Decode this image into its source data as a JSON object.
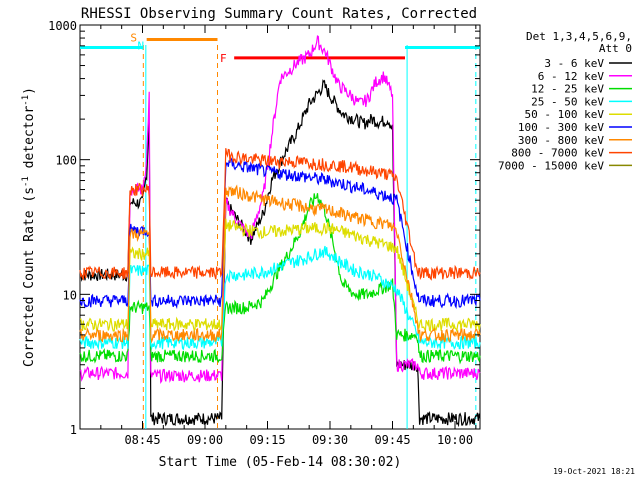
{
  "chart_data": {
    "type": "line",
    "title": "RHESSI Observing Summary Count Rates, Corrected",
    "xlabel": "Start Time (05-Feb-14 08:30:02)",
    "ylabel": "Corrected Count Rate (s",
    "ylabel_sup1": "-1",
    "ylabel_mid": " detector",
    "ylabel_sup2": "-1",
    "ylabel_end": ")",
    "yscale": "log",
    "ylim": [
      1,
      1000
    ],
    "xlim_minutes": [
      0,
      96
    ],
    "x_ticks": [
      {
        "label": "08:45",
        "min": 15
      },
      {
        "label": "09:00",
        "min": 30
      },
      {
        "label": "09:15",
        "min": 45
      },
      {
        "label": "09:30",
        "min": 60
      },
      {
        "label": "09:45",
        "min": 75
      },
      {
        "label": "10:00",
        "min": 90
      }
    ],
    "y_ticks": [
      {
        "label": "1",
        "value": 1
      },
      {
        "label": "10",
        "value": 10
      },
      {
        "label": "100",
        "value": 100
      },
      {
        "label": "1000",
        "value": 1000
      }
    ],
    "legend_header_1": "Det 1,3,4,5,6,9,",
    "legend_header_2": "Att 0",
    "legend_position": "right",
    "series": [
      {
        "name": "3 - 6 keV",
        "color": "#000000",
        "points": [
          [
            0,
            14
          ],
          [
            10,
            14
          ],
          [
            11.5,
            14
          ],
          [
            12,
            48
          ],
          [
            15,
            48
          ],
          [
            16,
            80
          ],
          [
            16.6,
            200
          ],
          [
            17,
            1.2
          ],
          [
            26,
            1.2
          ],
          [
            34,
            1.2
          ],
          [
            35,
            48
          ],
          [
            38,
            35
          ],
          [
            41,
            26
          ],
          [
            44,
            40
          ],
          [
            46,
            70
          ],
          [
            49,
            110
          ],
          [
            52,
            160
          ],
          [
            55,
            260
          ],
          [
            57,
            310
          ],
          [
            58.5,
            360
          ],
          [
            60,
            300
          ],
          [
            63,
            220
          ],
          [
            66,
            200
          ],
          [
            68,
            185
          ],
          [
            70,
            200
          ],
          [
            72,
            190
          ],
          [
            74,
            200
          ],
          [
            75,
            170
          ],
          [
            76,
            3
          ],
          [
            81,
            3
          ],
          [
            81.5,
            1.2
          ],
          [
            96,
            1.2
          ]
        ]
      },
      {
        "name": "6 - 12 keV",
        "color": "#ff00ff",
        "points": [
          [
            0,
            2.6
          ],
          [
            10,
            2.6
          ],
          [
            11.5,
            2.6
          ],
          [
            12,
            60
          ],
          [
            15,
            60
          ],
          [
            16,
            100
          ],
          [
            16.6,
            300
          ],
          [
            17,
            2.5
          ],
          [
            26,
            2.5
          ],
          [
            34,
            2.5
          ],
          [
            35,
            48
          ],
          [
            38,
            34
          ],
          [
            41,
            27
          ],
          [
            44,
            55
          ],
          [
            46,
            150
          ],
          [
            48,
            400
          ],
          [
            52,
            520
          ],
          [
            55,
            600
          ],
          [
            57,
            760
          ],
          [
            59,
            620
          ],
          [
            62,
            360
          ],
          [
            65,
            300
          ],
          [
            67,
            260
          ],
          [
            69,
            280
          ],
          [
            71,
            380
          ],
          [
            73,
            420
          ],
          [
            75,
            300
          ],
          [
            76,
            3
          ],
          [
            81,
            3
          ],
          [
            81.5,
            2.6
          ],
          [
            96,
            2.6
          ]
        ]
      },
      {
        "name": "12 - 25 keV",
        "color": "#00dd00",
        "points": [
          [
            0,
            3.5
          ],
          [
            10,
            3.5
          ],
          [
            11.5,
            3.5
          ],
          [
            12,
            8
          ],
          [
            14,
            8
          ],
          [
            15,
            8
          ],
          [
            16,
            8
          ],
          [
            16.6,
            8
          ],
          [
            17,
            3.5
          ],
          [
            26,
            3.5
          ],
          [
            34,
            3.5
          ],
          [
            35,
            8
          ],
          [
            40,
            8
          ],
          [
            44,
            9
          ],
          [
            47,
            14
          ],
          [
            50,
            20
          ],
          [
            53,
            30
          ],
          [
            55,
            45
          ],
          [
            57,
            55
          ],
          [
            59,
            40
          ],
          [
            61,
            22
          ],
          [
            63,
            12
          ],
          [
            66,
            10
          ],
          [
            69,
            10
          ],
          [
            72,
            11
          ],
          [
            75,
            12
          ],
          [
            76,
            5
          ],
          [
            81,
            5
          ],
          [
            81.5,
            3.5
          ],
          [
            96,
            3.5
          ]
        ]
      },
      {
        "name": "25 - 50 keV",
        "color": "#00ffff",
        "points": [
          [
            0,
            4.4
          ],
          [
            10,
            4.4
          ],
          [
            11.5,
            4.4
          ],
          [
            12,
            15
          ],
          [
            15,
            15
          ],
          [
            16.6,
            15
          ],
          [
            17,
            4.4
          ],
          [
            26,
            4.4
          ],
          [
            34,
            4.4
          ],
          [
            35,
            14
          ],
          [
            40,
            14
          ],
          [
            45,
            15
          ],
          [
            50,
            17
          ],
          [
            55,
            19
          ],
          [
            58,
            21
          ],
          [
            60,
            20
          ],
          [
            63,
            17
          ],
          [
            66,
            15
          ],
          [
            70,
            14
          ],
          [
            74,
            12
          ],
          [
            76,
            11
          ],
          [
            81,
            5
          ],
          [
            81.5,
            4.4
          ],
          [
            96,
            4.4
          ]
        ]
      },
      {
        "name": "50 - 100 keV",
        "color": "#dddd00",
        "points": [
          [
            0,
            6
          ],
          [
            10,
            6
          ],
          [
            11.5,
            6
          ],
          [
            12,
            20
          ],
          [
            15,
            20
          ],
          [
            16.6,
            20
          ],
          [
            17,
            6
          ],
          [
            26,
            6
          ],
          [
            34,
            6
          ],
          [
            35,
            33
          ],
          [
            40,
            30
          ],
          [
            45,
            29
          ],
          [
            50,
            30
          ],
          [
            55,
            31
          ],
          [
            60,
            31
          ],
          [
            65,
            28
          ],
          [
            70,
            25
          ],
          [
            74,
            23
          ],
          [
            76,
            22
          ],
          [
            81,
            6.5
          ],
          [
            81.5,
            6
          ],
          [
            96,
            6
          ]
        ]
      },
      {
        "name": "100 - 300 keV",
        "color": "#0000ff",
        "points": [
          [
            0,
            9
          ],
          [
            10,
            9
          ],
          [
            11.5,
            9
          ],
          [
            12,
            30
          ],
          [
            15,
            30
          ],
          [
            16.6,
            30
          ],
          [
            17,
            9
          ],
          [
            26,
            9
          ],
          [
            34,
            9
          ],
          [
            35,
            95
          ],
          [
            40,
            88
          ],
          [
            45,
            82
          ],
          [
            50,
            78
          ],
          [
            55,
            74
          ],
          [
            60,
            70
          ],
          [
            65,
            64
          ],
          [
            70,
            58
          ],
          [
            74,
            54
          ],
          [
            76,
            50
          ],
          [
            81,
            10
          ],
          [
            81.5,
            9
          ],
          [
            96,
            9
          ]
        ]
      },
      {
        "name": "300 - 800 keV",
        "color": "#ff8800",
        "points": [
          [
            0,
            5
          ],
          [
            10,
            5
          ],
          [
            11.5,
            5
          ],
          [
            12,
            28
          ],
          [
            15,
            28
          ],
          [
            16.6,
            28
          ],
          [
            17,
            5
          ],
          [
            26,
            5
          ],
          [
            34,
            5
          ],
          [
            35,
            60
          ],
          [
            40,
            55
          ],
          [
            45,
            50
          ],
          [
            50,
            47
          ],
          [
            55,
            44
          ],
          [
            60,
            42
          ],
          [
            65,
            38
          ],
          [
            70,
            35
          ],
          [
            74,
            33
          ],
          [
            76,
            30
          ],
          [
            81,
            6
          ],
          [
            81.5,
            5
          ],
          [
            96,
            5
          ]
        ]
      },
      {
        "name": "800 - 7000 keV",
        "color": "#ff4400",
        "points": [
          [
            0,
            14.5
          ],
          [
            10,
            14.5
          ],
          [
            11.5,
            14.5
          ],
          [
            12,
            60
          ],
          [
            15,
            60
          ],
          [
            16.6,
            60
          ],
          [
            17,
            14.5
          ],
          [
            26,
            14.5
          ],
          [
            34,
            14.5
          ],
          [
            35,
            110
          ],
          [
            40,
            102
          ],
          [
            45,
            98
          ],
          [
            50,
            97
          ],
          [
            55,
            95
          ],
          [
            60,
            92
          ],
          [
            65,
            88
          ],
          [
            70,
            82
          ],
          [
            74,
            78
          ],
          [
            76,
            72
          ],
          [
            81,
            15
          ],
          [
            81.5,
            14.5
          ],
          [
            96,
            14.5
          ]
        ]
      },
      {
        "name": "7000 - 15000 keV",
        "color": "#888800",
        "points": []
      }
    ],
    "annotations": [
      {
        "label": "S",
        "color": "#ff8800",
        "x": 14.5
      },
      {
        "label": "N",
        "color": "#00ffff",
        "x": 16.2
      },
      {
        "label": "F",
        "color": "#ff0000",
        "x": 36
      }
    ],
    "bars": [
      {
        "color": "#00ffff",
        "x0": 0,
        "x1": 15,
        "y": 680
      },
      {
        "color": "#ff8800",
        "x0": 16,
        "x1": 33,
        "y": 780
      },
      {
        "color": "#ff0000",
        "x0": 37,
        "x1": 78,
        "y": 570
      },
      {
        "color": "#00ffff",
        "x0": 78,
        "x1": 96,
        "y": 680
      }
    ],
    "vlines": [
      {
        "color": "#ff8800",
        "x": 15.2,
        "style": "dashed"
      },
      {
        "color": "#ff8800",
        "x": 33,
        "style": "dashed"
      },
      {
        "color": "#00ffff",
        "x": 15.8,
        "style": "solid"
      },
      {
        "color": "#00ffff",
        "x": 78.5,
        "style": "solid"
      },
      {
        "color": "#00ffff",
        "x": 95,
        "style": "dashed"
      }
    ],
    "footer": "19-Oct-2021 18:21"
  }
}
